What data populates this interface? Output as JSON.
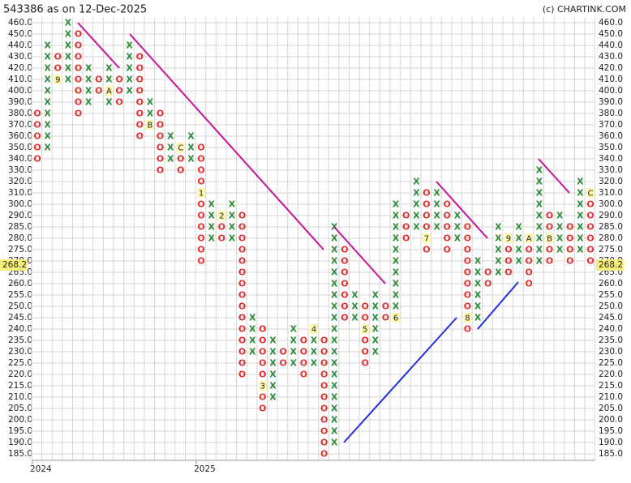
{
  "chart_data": {
    "type": "pnf",
    "title": "543386 as on 12-Dec-2025",
    "source": "(c) CHARTINK.COM",
    "last_price": 268.2,
    "x_color": "#2e8b3a",
    "o_color": "#e03030",
    "yticks": [
      {
        "value": 460,
        "label": "460.0"
      },
      {
        "value": 450,
        "label": "450.0"
      },
      {
        "value": 440,
        "label": "440.0"
      },
      {
        "value": 430,
        "label": "430.0"
      },
      {
        "value": 420,
        "label": "420.0"
      },
      {
        "value": 410,
        "label": "410.0"
      },
      {
        "value": 400,
        "label": "400.0"
      },
      {
        "value": 390,
        "label": "390.0"
      },
      {
        "value": 380,
        "label": "380.0"
      },
      {
        "value": 370,
        "label": "370.0"
      },
      {
        "value": 360,
        "label": "360.0"
      },
      {
        "value": 350,
        "label": "350.0"
      },
      {
        "value": 340,
        "label": "340.0"
      },
      {
        "value": 330,
        "label": "330.0"
      },
      {
        "value": 320,
        "label": "320.0"
      },
      {
        "value": 310,
        "label": "310.0"
      },
      {
        "value": 300,
        "label": "300.0"
      },
      {
        "value": 290,
        "label": "290.0"
      },
      {
        "value": 285,
        "label": "285.0"
      },
      {
        "value": 280,
        "label": "280.0"
      },
      {
        "value": 275,
        "label": "275.0"
      },
      {
        "value": 270,
        "label": "270.0"
      },
      {
        "value": 265,
        "label": "265.0"
      },
      {
        "value": 260,
        "label": "260.0"
      },
      {
        "value": 255,
        "label": "255.0"
      },
      {
        "value": 250,
        "label": "250.0"
      },
      {
        "value": 245,
        "label": "245.0"
      },
      {
        "value": 240,
        "label": "240.0"
      },
      {
        "value": 235,
        "label": "235.0"
      },
      {
        "value": 230,
        "label": "230.0"
      },
      {
        "value": 225,
        "label": "225.0"
      },
      {
        "value": 220,
        "label": "220.0"
      },
      {
        "value": 215,
        "label": "215.0"
      },
      {
        "value": 210,
        "label": "210.0"
      },
      {
        "value": 205,
        "label": "205.0"
      },
      {
        "value": 200,
        "label": "200.0"
      },
      {
        "value": 195,
        "label": "195.0"
      },
      {
        "value": 190,
        "label": "190.0"
      },
      {
        "value": 185,
        "label": "185.0"
      }
    ],
    "years": [
      {
        "label": "2024",
        "column": 0
      },
      {
        "label": "2025",
        "column": 16
      }
    ],
    "columns": [
      {
        "box": "O",
        "high": 380,
        "low": 340
      },
      {
        "box": "X",
        "high": 440,
        "low": 350
      },
      {
        "box": "O",
        "high": 430,
        "low": 410,
        "marker": "9",
        "at": 410
      },
      {
        "box": "X",
        "high": 460,
        "low": 410
      },
      {
        "box": "O",
        "high": 450,
        "low": 380
      },
      {
        "box": "X",
        "high": 420,
        "low": 390
      },
      {
        "box": "O",
        "high": 410,
        "low": 400
      },
      {
        "box": "X",
        "high": 420,
        "low": 390,
        "marker": "A",
        "at": 400
      },
      {
        "box": "O",
        "high": 410,
        "low": 390
      },
      {
        "box": "X",
        "high": 440,
        "low": 400
      },
      {
        "box": "O",
        "high": 430,
        "low": 360
      },
      {
        "box": "X",
        "high": 390,
        "low": 370,
        "marker": "B",
        "at": 370
      },
      {
        "box": "O",
        "high": 380,
        "low": 330
      },
      {
        "box": "X",
        "high": 360,
        "low": 340
      },
      {
        "box": "O",
        "high": 350,
        "low": 330,
        "marker": "C",
        "at": 350
      },
      {
        "box": "X",
        "high": 360,
        "low": 340
      },
      {
        "box": "O",
        "high": 350,
        "low": 270,
        "marker": "1",
        "at": 310
      },
      {
        "box": "X",
        "high": 300,
        "low": 280
      },
      {
        "box": "O",
        "high": 290,
        "low": 280,
        "marker": "2",
        "at": 290
      },
      {
        "box": "X",
        "high": 300,
        "low": 280
      },
      {
        "box": "O",
        "high": 290,
        "low": 220
      },
      {
        "box": "X",
        "high": 245,
        "low": 230
      },
      {
        "box": "O",
        "high": 240,
        "low": 205,
        "marker": "3",
        "at": 215
      },
      {
        "box": "X",
        "high": 235,
        "low": 210
      },
      {
        "box": "O",
        "high": 230,
        "low": 225
      },
      {
        "box": "X",
        "high": 240,
        "low": 225
      },
      {
        "box": "O",
        "high": 235,
        "low": 220
      },
      {
        "box": "X",
        "high": 240,
        "low": 225,
        "marker": "4",
        "at": 240
      },
      {
        "box": "O",
        "high": 235,
        "low": 185
      },
      {
        "box": "X",
        "high": 285,
        "low": 190
      },
      {
        "box": "O",
        "high": 275,
        "low": 245
      },
      {
        "box": "X",
        "high": 255,
        "low": 245
      },
      {
        "box": "O",
        "high": 250,
        "low": 225,
        "marker": "5",
        "at": 240
      },
      {
        "box": "X",
        "high": 255,
        "low": 230
      },
      {
        "box": "O",
        "high": 250,
        "low": 245
      },
      {
        "box": "X",
        "high": 300,
        "low": 245,
        "marker": "6",
        "at": 245
      },
      {
        "box": "O",
        "high": 290,
        "low": 280
      },
      {
        "box": "X",
        "high": 320,
        "low": 285
      },
      {
        "box": "O",
        "high": 310,
        "low": 275,
        "marker": "7",
        "at": 280
      },
      {
        "box": "X",
        "high": 310,
        "low": 285
      },
      {
        "box": "O",
        "high": 300,
        "low": 275
      },
      {
        "box": "X",
        "high": 290,
        "low": 280
      },
      {
        "box": "O",
        "high": 285,
        "low": 240,
        "marker": "8",
        "at": 245
      },
      {
        "box": "X",
        "high": 270,
        "low": 245
      },
      {
        "box": "O",
        "high": 265,
        "low": 260
      },
      {
        "box": "X",
        "high": 285,
        "low": 265
      },
      {
        "box": "O",
        "high": 280,
        "low": 265,
        "marker": "9",
        "at": 280
      },
      {
        "box": "X",
        "high": 285,
        "low": 270
      },
      {
        "box": "O",
        "high": 280,
        "low": 260,
        "marker": "A",
        "at": 280
      },
      {
        "box": "X",
        "high": 330,
        "low": 270
      },
      {
        "box": "O",
        "high": 290,
        "low": 270,
        "marker": "B",
        "at": 280
      },
      {
        "box": "X",
        "high": 290,
        "low": 275
      },
      {
        "box": "O",
        "high": 285,
        "low": 270
      },
      {
        "box": "X",
        "high": 320,
        "low": 275
      },
      {
        "box": "O",
        "high": 310,
        "low": 270,
        "marker": "C",
        "at": 310
      }
    ]
  }
}
